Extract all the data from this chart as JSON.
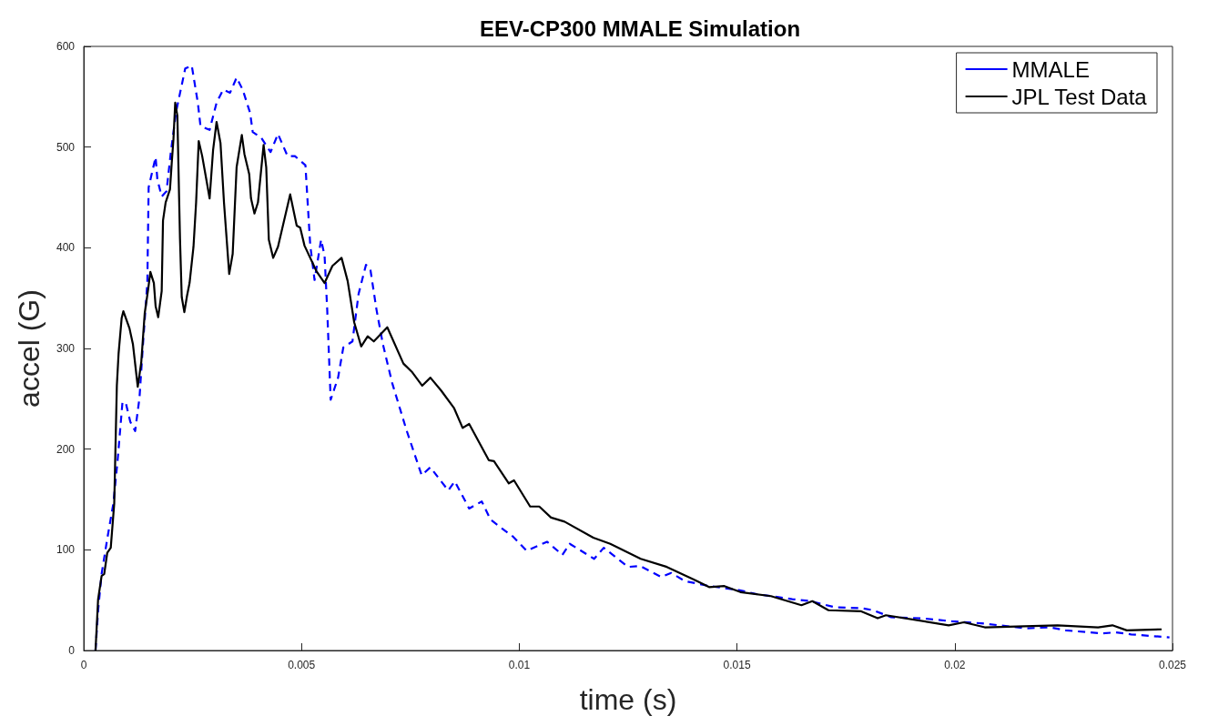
{
  "chart_data": {
    "type": "line",
    "title": "EEV-CP300 MMALE Simulation",
    "xlabel": "time (s)",
    "ylabel": "accel (G)",
    "xlim": [
      0,
      0.025
    ],
    "xticks": [
      0,
      0.005,
      0.01,
      0.015,
      0.02,
      0.025
    ],
    "ylim": [
      0,
      600
    ],
    "yticks": [
      0,
      100,
      200,
      300,
      400,
      500,
      600
    ],
    "grid": false,
    "legend": "top right",
    "marker": "none",
    "series": [
      {
        "name": "MMALE",
        "color": "#0000ff",
        "line_style": "dashed",
        "x": [
          0.00027,
          0.00033,
          0.00041,
          0.00054,
          0.00068,
          0.00078,
          0.00089,
          0.00097,
          0.00107,
          0.00118,
          0.00128,
          0.00136,
          0.00146,
          0.00149,
          0.00165,
          0.00169,
          0.00179,
          0.0019,
          0.002,
          0.00212,
          0.00233,
          0.00248,
          0.00262,
          0.00268,
          0.00289,
          0.00305,
          0.0032,
          0.00336,
          0.00351,
          0.00365,
          0.00382,
          0.00388,
          0.00408,
          0.00429,
          0.00446,
          0.00468,
          0.00485,
          0.00509,
          0.0052,
          0.0053,
          0.00545,
          0.00553,
          0.00559,
          0.00567,
          0.00584,
          0.00596,
          0.00617,
          0.00631,
          0.00648,
          0.00658,
          0.00672,
          0.00687,
          0.00708,
          0.00741,
          0.00776,
          0.00796,
          0.00817,
          0.00837,
          0.00852,
          0.00885,
          0.00914,
          0.00934,
          0.00961,
          0.00986,
          0.01017,
          0.01064,
          0.01099,
          0.01116,
          0.01172,
          0.01194,
          0.0125,
          0.01277,
          0.01326,
          0.01349,
          0.0138,
          0.01436,
          0.01504,
          0.01545,
          0.01627,
          0.01669,
          0.01724,
          0.01786,
          0.01813,
          0.01854,
          0.01925,
          0.01993,
          0.02061,
          0.02164,
          0.02219,
          0.02255,
          0.02337,
          0.0237,
          0.02405,
          0.02493
        ],
        "values": [
          0,
          40,
          76,
          111,
          146,
          190,
          247,
          245,
          227,
          218,
          251,
          304,
          365,
          460,
          490,
          468,
          451,
          456,
          495,
          535,
          578,
          581,
          544,
          521,
          517,
          544,
          557,
          554,
          569,
          557,
          534,
          515,
          509,
          495,
          513,
          491,
          491,
          482,
          403,
          368,
          408,
          392,
          339,
          249,
          271,
          301,
          307,
          354,
          383,
          379,
          339,
          304,
          266,
          219,
          174,
          182,
          170,
          159,
          168,
          141,
          148,
          130,
          121,
          113,
          99,
          108,
          95,
          106,
          91,
          102,
          83,
          84,
          73,
          77,
          69,
          64,
          60,
          56,
          51,
          49,
          43,
          42,
          40,
          33,
          32,
          29,
          27,
          22,
          23,
          20,
          17,
          18,
          16,
          13
        ]
      },
      {
        "name": "JPL Test Data",
        "color": "#000000",
        "line_style": "solid",
        "x": [
          0.00027,
          0.00033,
          0.00041,
          0.00047,
          0.00054,
          0.00062,
          0.0007,
          0.00076,
          0.0008,
          0.00087,
          0.00091,
          0.00105,
          0.00113,
          0.00124,
          0.00132,
          0.0014,
          0.00148,
          0.00153,
          0.00161,
          0.00165,
          0.00171,
          0.00179,
          0.00182,
          0.00188,
          0.00198,
          0.00202,
          0.00206,
          0.0021,
          0.00215,
          0.00219,
          0.00221,
          0.00225,
          0.00231,
          0.00237,
          0.00243,
          0.00252,
          0.00258,
          0.00264,
          0.00272,
          0.00281,
          0.00289,
          0.00297,
          0.00305,
          0.00314,
          0.00322,
          0.00334,
          0.00342,
          0.00351,
          0.00363,
          0.00369,
          0.0038,
          0.00384,
          0.00392,
          0.004,
          0.00413,
          0.00419,
          0.00425,
          0.00435,
          0.00446,
          0.00474,
          0.00489,
          0.00497,
          0.00507,
          0.00534,
          0.00553,
          0.00571,
          0.00592,
          0.00606,
          0.00621,
          0.00637,
          0.00652,
          0.00666,
          0.00697,
          0.00734,
          0.00753,
          0.00777,
          0.00796,
          0.00821,
          0.0085,
          0.0087,
          0.00885,
          0.0093,
          0.00942,
          0.00976,
          0.00988,
          0.01025,
          0.01046,
          0.01073,
          0.01104,
          0.0117,
          0.01209,
          0.01279,
          0.01339,
          0.01403,
          0.01436,
          0.01471,
          0.01508,
          0.01578,
          0.01648,
          0.01673,
          0.0171,
          0.01784,
          0.01823,
          0.01842,
          0.01986,
          0.02021,
          0.02069,
          0.0216,
          0.02236,
          0.02329,
          0.02362,
          0.02395,
          0.02475
        ],
        "values": [
          0,
          51,
          74,
          76,
          97,
          102,
          146,
          263,
          295,
          330,
          337,
          320,
          304,
          262,
          286,
          335,
          359,
          376,
          365,
          342,
          331,
          357,
          427,
          445,
          458,
          484,
          508,
          544,
          531,
          449,
          409,
          351,
          336,
          352,
          365,
          401,
          445,
          506,
          491,
          469,
          449,
          497,
          525,
          504,
          445,
          374,
          394,
          480,
          512,
          493,
          473,
          449,
          434,
          445,
          502,
          480,
          408,
          390,
          401,
          453,
          422,
          420,
          402,
          377,
          365,
          382,
          390,
          367,
          326,
          302,
          312,
          307,
          321,
          285,
          277,
          263,
          271,
          258,
          241,
          221,
          225,
          189,
          188,
          166,
          169,
          143,
          143,
          132,
          128,
          112,
          106,
          91,
          83,
          70,
          63,
          64,
          58,
          54,
          45,
          49,
          40,
          39,
          32,
          35,
          25,
          28,
          23,
          24,
          25,
          23,
          25,
          20,
          21
        ]
      }
    ]
  }
}
